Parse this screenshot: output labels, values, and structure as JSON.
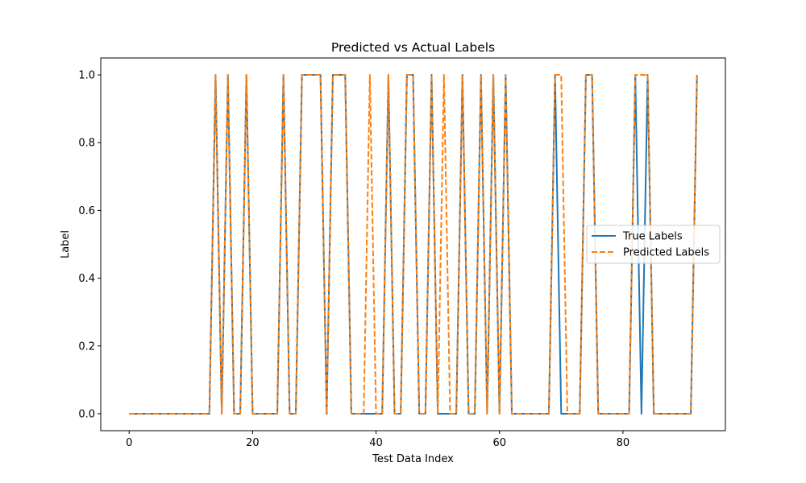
{
  "chart_data": {
    "type": "line",
    "title": "Predicted vs Actual Labels",
    "xlabel": "Test Data Index",
    "ylabel": "Label",
    "xlim": [
      -4.6,
      96.6
    ],
    "ylim": [
      -0.05,
      1.05
    ],
    "xticks": [
      0,
      20,
      40,
      60,
      80
    ],
    "yticks": [
      0.0,
      0.2,
      0.4,
      0.6,
      0.8,
      1.0
    ],
    "xtick_labels": [
      "0",
      "20",
      "40",
      "60",
      "80"
    ],
    "ytick_labels": [
      "0.0",
      "0.2",
      "0.4",
      "0.6",
      "0.8",
      "1.0"
    ],
    "grid": false,
    "legend_position": "center-right",
    "x": [
      0,
      1,
      2,
      3,
      4,
      5,
      6,
      7,
      8,
      9,
      10,
      11,
      12,
      13,
      14,
      15,
      16,
      17,
      18,
      19,
      20,
      21,
      22,
      23,
      24,
      25,
      26,
      27,
      28,
      29,
      30,
      31,
      32,
      33,
      34,
      35,
      36,
      37,
      38,
      39,
      40,
      41,
      42,
      43,
      44,
      45,
      46,
      47,
      48,
      49,
      50,
      51,
      52,
      53,
      54,
      55,
      56,
      57,
      58,
      59,
      60,
      61,
      62,
      63,
      64,
      65,
      66,
      67,
      68,
      69,
      70,
      71,
      72,
      73,
      74,
      75,
      76,
      77,
      78,
      79,
      80,
      81,
      82,
      83,
      84,
      85,
      86,
      87,
      88,
      89,
      90,
      91,
      92
    ],
    "series": [
      {
        "name": "True Labels",
        "color": "#1f77b4",
        "linestyle": "solid",
        "values": [
          0,
          0,
          0,
          0,
          0,
          0,
          0,
          0,
          0,
          0,
          0,
          0,
          0,
          0,
          1,
          0,
          1,
          0,
          0,
          1,
          0,
          0,
          0,
          0,
          0,
          1,
          0,
          0,
          1,
          1,
          1,
          1,
          0,
          1,
          1,
          1,
          0,
          0,
          0,
          0,
          0,
          0,
          1,
          0,
          0,
          1,
          1,
          0,
          0,
          1,
          0,
          0,
          0,
          0,
          1,
          0,
          0,
          1,
          0,
          1,
          0,
          1,
          0,
          0,
          0,
          0,
          0,
          0,
          0,
          1,
          0,
          0,
          0,
          0,
          1,
          1,
          0,
          0,
          0,
          0,
          0,
          0,
          1,
          0,
          1,
          0,
          0,
          0,
          0,
          0,
          0,
          0,
          1
        ]
      },
      {
        "name": "Predicted Labels",
        "color": "#ff7f0e",
        "linestyle": "dashed",
        "values": [
          0,
          0,
          0,
          0,
          0,
          0,
          0,
          0,
          0,
          0,
          0,
          0,
          0,
          0,
          1,
          0,
          1,
          0,
          0,
          1,
          0,
          0,
          0,
          0,
          0,
          1,
          0,
          0,
          1,
          1,
          1,
          1,
          0,
          1,
          1,
          1,
          0,
          0,
          0,
          1,
          0,
          0,
          1,
          0,
          0,
          1,
          1,
          0,
          0,
          1,
          0,
          1,
          0,
          0,
          1,
          0,
          0,
          1,
          0,
          1,
          0,
          1,
          0,
          0,
          0,
          0,
          0,
          0,
          0,
          1,
          1,
          0,
          0,
          0,
          1,
          1,
          0,
          0,
          0,
          0,
          0,
          0,
          1,
          1,
          1,
          0,
          0,
          0,
          0,
          0,
          0,
          0,
          1
        ]
      }
    ]
  }
}
